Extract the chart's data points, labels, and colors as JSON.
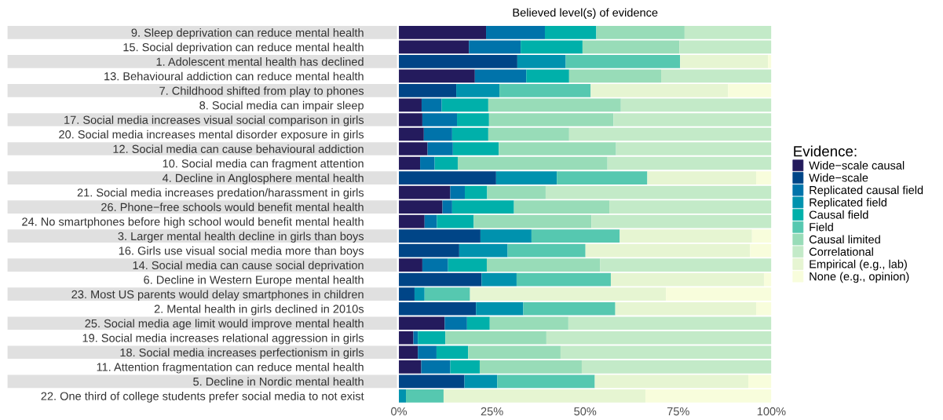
{
  "chart_data": {
    "type": "bar",
    "orientation": "horizontal",
    "stacked": true,
    "title": "Believed level(s) of evidence",
    "legend_title": "Evidence:",
    "legend": "right",
    "categories": [
      "9. Sleep deprivation can reduce mental health",
      "15. Social deprivation can reduce mental health",
      "1. Adolescent mental health has declined",
      "13. Behavioural addiction can reduce mental health",
      "7. Childhood shifted from play to phones",
      "8. Social media can impair sleep",
      "17. Social media increases visual social comparison in girls",
      "20. Social media increases mental disorder exposure in girls",
      "12. Social media can cause behavioural addiction",
      "10. Social media can fragment attention",
      "4. Decline in Anglosphere mental health",
      "21. Social media increases predation/harassment in girls",
      "26. Phone−free schools would benefit mental health",
      "24. No smartphones before high school would benefit mental health",
      "3. Larger mental health decline in girls than boys",
      "16. Girls use visual social media more than boys",
      "14. Social media can cause social deprivation",
      "6. Decline in Western Europe mental health",
      "23. Most US parents would delay smartphones in children",
      "2. Mental health in girls declined in 2010s",
      "25. Social media age limit would improve mental health",
      "19. Social media increases relational aggression in girls",
      "18. Social media increases perfectionism in girls",
      "11. Attention fragmentation can reduce mental health",
      "5. Decline in Nordic mental health",
      "22. One third of college students prefer social media to not exist"
    ],
    "xlim": [
      0,
      100
    ],
    "xticks": [
      {
        "value": 0,
        "label": "0%"
      },
      {
        "value": 25,
        "label": "25%"
      },
      {
        "value": 50,
        "label": "50%"
      },
      {
        "value": 75,
        "label": "75%"
      },
      {
        "value": 100,
        "label": "100%"
      }
    ],
    "series": [
      {
        "name": "Wide−scale causal",
        "color": "#241b5d",
        "values": [
          23.4,
          18.8,
          null,
          20.4,
          null,
          6.1,
          6.3,
          6.7,
          7.7,
          5.7,
          null,
          13.8,
          11.7,
          6.9,
          null,
          null,
          6.3,
          null,
          null,
          null,
          12.3,
          3.9,
          5.1,
          6.0,
          null,
          null
        ]
      },
      {
        "name": "Wide−scale",
        "color": "#004587",
        "values": [
          null,
          null,
          31.8,
          null,
          15.4,
          null,
          null,
          null,
          null,
          null,
          26.1,
          null,
          null,
          null,
          21.9,
          16.2,
          null,
          22.2,
          4.2,
          20.7,
          null,
          null,
          null,
          null,
          17.6,
          null
        ]
      },
      {
        "name": "Replicated causal field",
        "color": "#0073aa",
        "values": [
          15.8,
          13.9,
          null,
          13.8,
          null,
          5.4,
          9.3,
          7.6,
          6.8,
          3.9,
          null,
          3.9,
          2.6,
          3.3,
          null,
          null,
          6.9,
          null,
          null,
          null,
          6.0,
          1.2,
          5.0,
          7.8,
          null,
          null
        ]
      },
      {
        "name": "Replicated field",
        "color": "#0092ae",
        "values": [
          null,
          null,
          13.0,
          null,
          11.6,
          null,
          null,
          null,
          null,
          null,
          16.3,
          null,
          null,
          null,
          13.7,
          13.0,
          null,
          9.4,
          2.7,
          12.7,
          null,
          null,
          null,
          null,
          8.8,
          1.9
        ]
      },
      {
        "name": "Causal field",
        "color": "#00b0aa",
        "values": [
          13.8,
          16.6,
          null,
          11.5,
          null,
          12.5,
          8.6,
          9.7,
          12.3,
          6.2,
          null,
          6.0,
          16.6,
          9.9,
          null,
          null,
          10.4,
          null,
          null,
          null,
          6.1,
          7.4,
          8.5,
          7.9,
          null,
          null
        ]
      },
      {
        "name": "Field",
        "color": "#56c8b0",
        "values": [
          null,
          null,
          30.7,
          null,
          24.5,
          null,
          null,
          null,
          null,
          null,
          24.3,
          null,
          null,
          null,
          23.7,
          20.9,
          null,
          25.3,
          12.2,
          24.7,
          null,
          null,
          null,
          null,
          26.2,
          10.1
        ]
      },
      {
        "name": "Causal limited",
        "color": "#98dcb8",
        "values": [
          23.7,
          26.0,
          null,
          24.7,
          null,
          35.6,
          33.4,
          21.7,
          31.5,
          40.2,
          null,
          15.7,
          25.6,
          31.6,
          null,
          null,
          30.4,
          null,
          null,
          null,
          21.1,
          27.1,
          24.8,
          27.4,
          null,
          null
        ]
      },
      {
        "name": "Correlational",
        "color": "#c3eac8",
        "values": [
          23.3,
          24.7,
          null,
          29.6,
          null,
          40.4,
          42.4,
          54.3,
          41.7,
          44.0,
          null,
          60.6,
          43.5,
          48.3,
          null,
          null,
          46.0,
          null,
          null,
          null,
          54.5,
          60.4,
          56.6,
          50.9,
          null,
          null
        ]
      },
      {
        "name": "Empirical (e.g., lab)",
        "color": "#e6f5d2",
        "values": [
          null,
          null,
          23.6,
          null,
          36.9,
          null,
          null,
          null,
          null,
          null,
          29.2,
          null,
          null,
          null,
          35.5,
          44.2,
          null,
          41.1,
          52.6,
          37.8,
          null,
          null,
          null,
          null,
          41.2,
          54.2
        ]
      },
      {
        "name": "None (e.g., opinion)",
        "color": "#f8fddc",
        "values": [
          null,
          null,
          0.9,
          null,
          11.6,
          null,
          null,
          null,
          null,
          null,
          4.1,
          null,
          null,
          null,
          5.2,
          5.7,
          null,
          2.0,
          28.3,
          4.1,
          null,
          null,
          null,
          null,
          6.2,
          33.8
        ]
      }
    ]
  }
}
